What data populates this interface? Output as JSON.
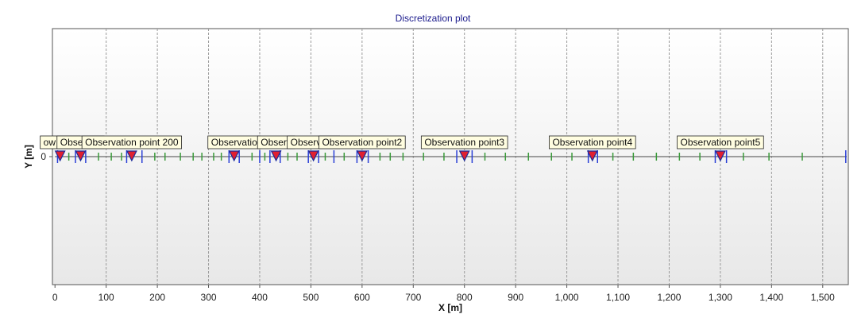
{
  "chart_data": {
    "type": "scatter",
    "title": "Discretization plot",
    "xlabel": "X [m]",
    "ylabel": "Y [m]",
    "xlim": [
      -5,
      1550
    ],
    "ylim": [
      -250,
      250
    ],
    "grid": true,
    "x_ticks": [
      0,
      100,
      200,
      300,
      400,
      500,
      600,
      700,
      800,
      900,
      1000,
      1100,
      1200,
      1300,
      1400,
      1500
    ],
    "x_tick_labels": [
      "0",
      "100",
      "200",
      "300",
      "400",
      "500",
      "600",
      "700",
      "800",
      "900",
      "1,000",
      "1,100",
      "1,200",
      "1,300",
      "1,400",
      "1,500"
    ],
    "y_ticks": [
      0
    ],
    "y_tick_labels": [
      "0"
    ],
    "observation_points": [
      {
        "name": "Flow source",
        "label": "ow sour",
        "x": 10
      },
      {
        "name": "Observation point",
        "label": "Observati",
        "x": 50
      },
      {
        "name": "Observation point 200",
        "label": "Observation point 200",
        "x": 150
      },
      {
        "name": "Observation point",
        "label": "Observatio",
        "x": 350
      },
      {
        "name": "Observation point",
        "label": "Observ",
        "x": 432
      },
      {
        "name": "Observation point",
        "label": "Observatio",
        "x": 505
      },
      {
        "name": "Observation point2",
        "label": "Observation point2",
        "x": 600
      },
      {
        "name": "Observation point3",
        "label": "Observation point3",
        "x": 800
      },
      {
        "name": "Observation point4",
        "label": "Observation point4",
        "x": 1050
      },
      {
        "name": "Observation point5",
        "label": "Observation point5",
        "x": 1300
      }
    ],
    "blue_nodes": [
      5,
      40,
      60,
      140,
      170,
      340,
      360,
      400,
      420,
      440,
      495,
      515,
      545,
      590,
      612,
      785,
      815,
      1042,
      1060,
      1290,
      1312,
      1545
    ],
    "green_nodes": [
      27,
      85,
      110,
      130,
      195,
      215,
      245,
      270,
      287,
      310,
      325,
      385,
      410,
      455,
      473,
      528,
      565,
      635,
      655,
      680,
      720,
      760,
      840,
      880,
      925,
      970,
      1010,
      1090,
      1130,
      1175,
      1220,
      1260,
      1345,
      1395,
      1460
    ],
    "colors": {
      "title": "#1a1a8c",
      "axis_line": "#555555",
      "grid": "#9a9a9a",
      "node_blue": "#2a3fd6",
      "node_green": "#3a9a3a",
      "marker_fill": "#e02030",
      "marker_stroke": "#1a2a9a",
      "label_bg": "#fffde0"
    }
  }
}
